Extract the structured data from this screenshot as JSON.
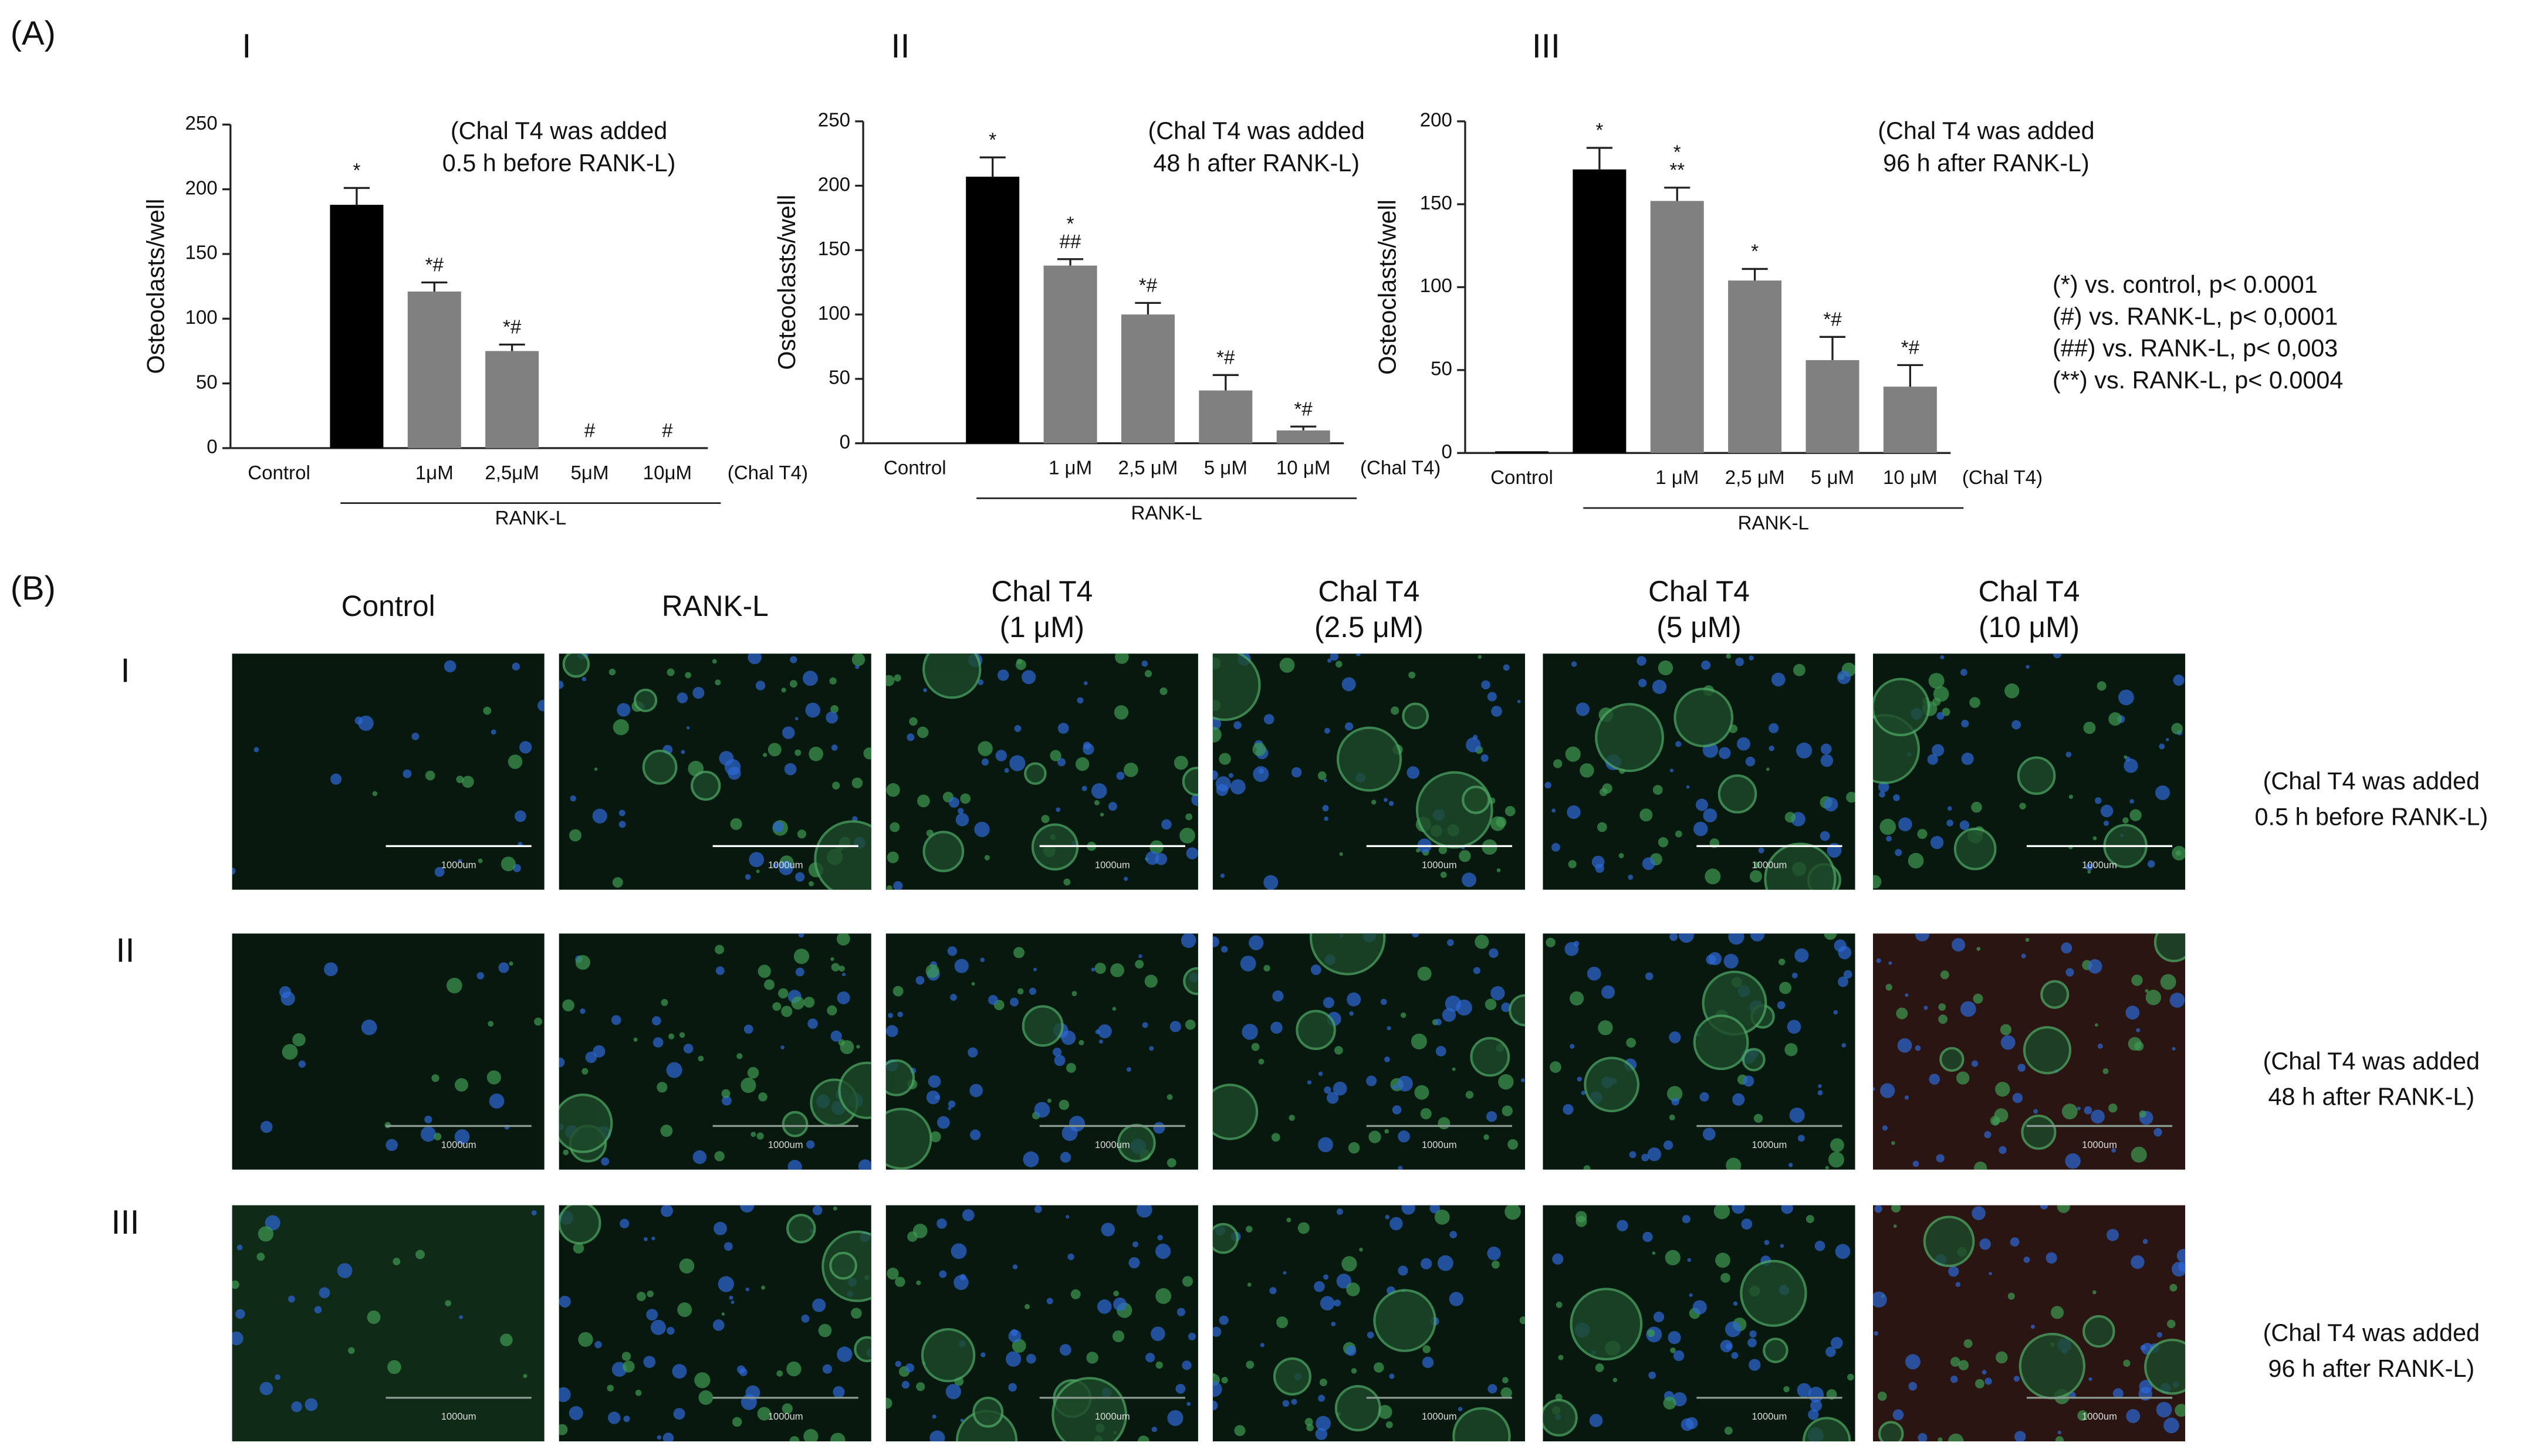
{
  "panel_labels": {
    "a": "(A)",
    "b": "(B)"
  },
  "chart_data": [
    {
      "type": "bar",
      "panel": "I",
      "y_label": "Osteoclasts/well",
      "annotation": [
        "(Chal T4 was added",
        "0.5 h before RANK-L)"
      ],
      "categories": [
        "Control",
        null,
        "1μM",
        "2,5μM",
        "5μM",
        "10μM"
      ],
      "x_suffix": "(Chal T4)",
      "group_label": "RANK-L",
      "values": [
        0,
        188,
        121,
        75,
        0,
        0
      ],
      "errors": [
        null,
        13,
        7,
        5,
        null,
        null
      ],
      "significance": [
        null,
        [
          "*"
        ],
        [
          "*#"
        ],
        [
          "*#"
        ],
        [
          "#"
        ],
        [
          "#"
        ]
      ],
      "colors": [
        "#000000",
        "#000000",
        "#808080",
        "#808080",
        "#808080",
        "#808080"
      ],
      "ylim": [
        0,
        250
      ],
      "yticks": [
        0,
        50,
        100,
        150,
        200,
        250
      ]
    },
    {
      "type": "bar",
      "panel": "II",
      "y_label": "Osteoclasts/well",
      "annotation": [
        "(Chal T4 was added",
        "48 h after RANK-L)"
      ],
      "categories": [
        "Control",
        null,
        "1 μM",
        "2,5 μM",
        "5 μM",
        "10 μM"
      ],
      "x_suffix": "(Chal T4)",
      "group_label": "RANK-L",
      "values": [
        0,
        207,
        138,
        100,
        41,
        10
      ],
      "errors": [
        null,
        15,
        5,
        9,
        12,
        3
      ],
      "significance": [
        null,
        [
          "*"
        ],
        [
          "*",
          "##"
        ],
        [
          "*#"
        ],
        [
          "*#"
        ],
        [
          "*#"
        ]
      ],
      "colors": [
        "#000000",
        "#000000",
        "#808080",
        "#808080",
        "#808080",
        "#808080"
      ],
      "ylim": [
        0,
        250
      ],
      "yticks": [
        0,
        50,
        100,
        150,
        200,
        250
      ]
    },
    {
      "type": "bar",
      "panel": "III",
      "y_label": "Osteoclasts/well",
      "annotation": [
        "(Chal T4 was added",
        "96 h after RANK-L)"
      ],
      "categories": [
        "Control",
        null,
        "1 μM",
        "2,5 μM",
        "5 μM",
        "10 μM"
      ],
      "x_suffix": "(Chal T4)",
      "group_label": "RANK-L",
      "values": [
        1,
        171,
        152,
        104,
        56,
        40
      ],
      "errors": [
        null,
        13,
        8,
        7,
        14,
        13
      ],
      "significance": [
        null,
        [
          "*"
        ],
        [
          "*",
          "**"
        ],
        [
          "*"
        ],
        [
          "*#"
        ],
        [
          "*#"
        ]
      ],
      "colors": [
        "#000000",
        "#000000",
        "#808080",
        "#808080",
        "#808080",
        "#808080"
      ],
      "ylim": [
        0,
        200
      ],
      "yticks": [
        0,
        50,
        100,
        150,
        200
      ]
    }
  ],
  "legend_notes": [
    "(*) vs. control, p< 0.0001",
    "(#) vs. RANK-L, p< 0,0001",
    "(##) vs. RANK-L, p< 0,003",
    "(**) vs. RANK-L, p< 0.0004"
  ],
  "micrographs": {
    "columns": [
      [
        "Control"
      ],
      [
        "RANK-L"
      ],
      [
        "Chal T4",
        "(1 μM)"
      ],
      [
        "Chal T4",
        "(2.5 μM)"
      ],
      [
        "Chal T4",
        "(5 μM)"
      ],
      [
        "Chal T4",
        "(10 μM)"
      ]
    ],
    "rows": [
      {
        "label": "I",
        "note": [
          "(Chal T4 was added",
          "0.5 h before RANK-L)"
        ]
      },
      {
        "label": "II",
        "note": [
          "(Chal T4 was added",
          "48 h after RANK-L)"
        ]
      },
      {
        "label": "III",
        "note": [
          "(Chal T4 was added",
          "96 h after RANK-L)"
        ]
      }
    ],
    "scale_bar_label": "1000um"
  }
}
